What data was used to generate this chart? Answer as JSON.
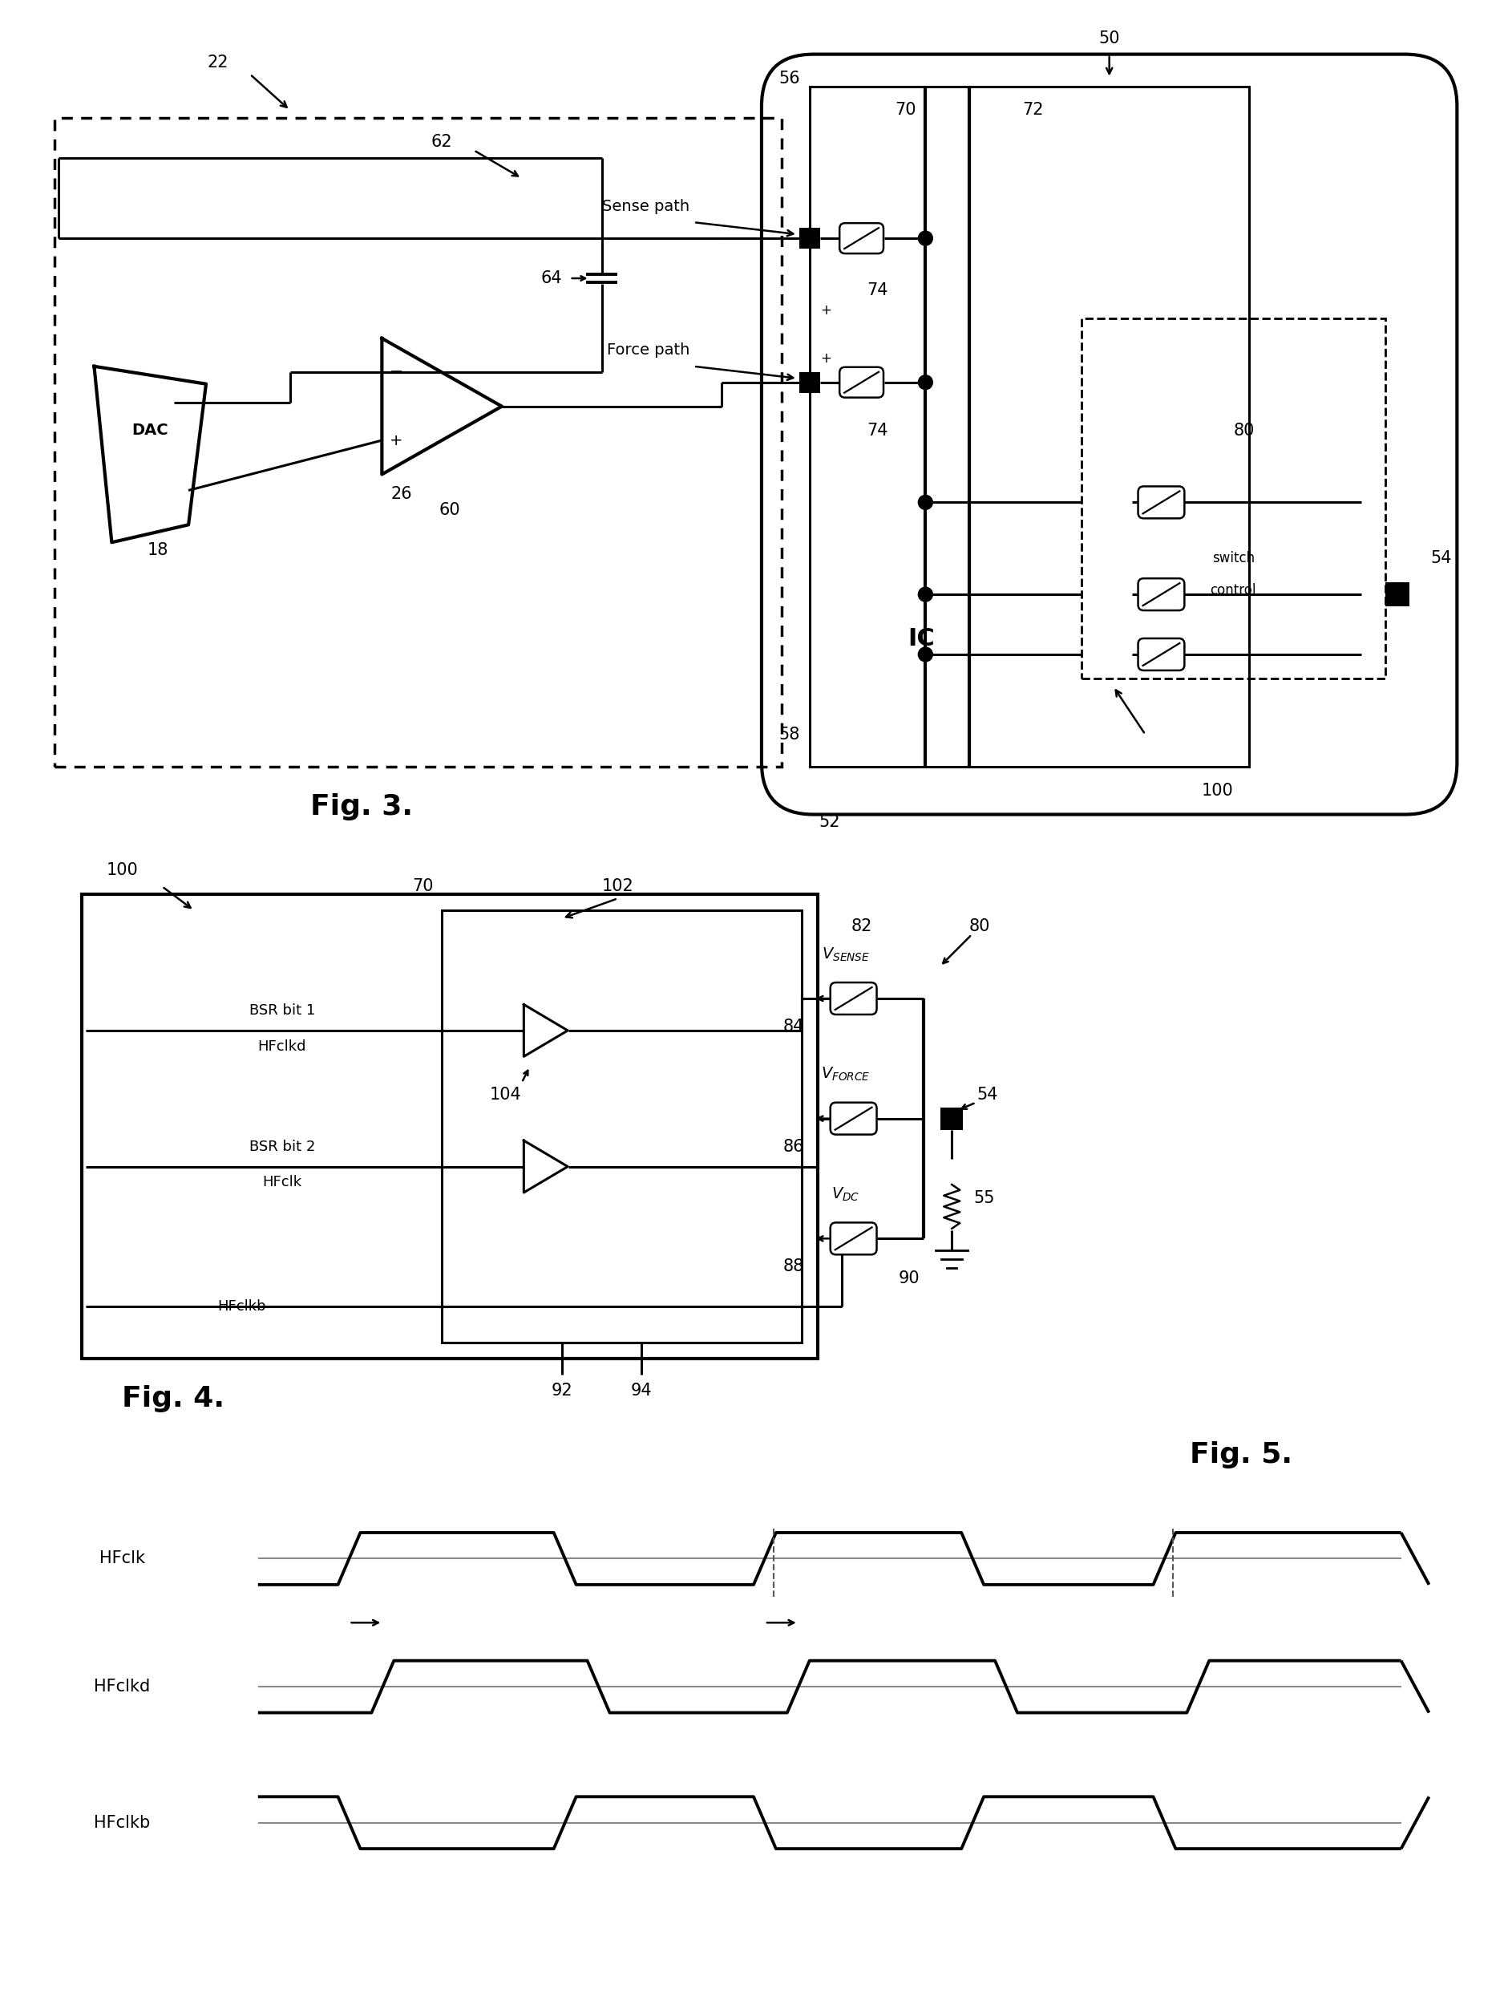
{
  "fig3_label": "Fig. 3.",
  "fig4_label": "Fig. 4.",
  "fig5_label": "Fig. 5.",
  "background": "#ffffff",
  "lw": 2.2,
  "lw_thick": 3.0,
  "fs_ref": 15,
  "fs_fig": 26,
  "fs_label": 14,
  "fs_ic": 22,
  "fs_sig": 14
}
